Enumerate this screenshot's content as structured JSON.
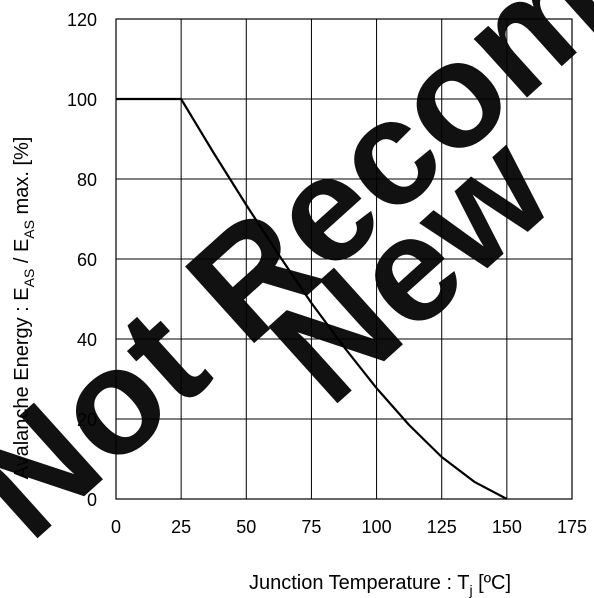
{
  "chart_data": {
    "type": "line",
    "title": "",
    "xlabel": {
      "main": "Junction Temperature : T",
      "sub": "j",
      "unit": " [ºC]"
    },
    "ylabel": {
      "part1": "Avalanche Energy : E",
      "sub1": "AS",
      "part2": " / E",
      "sub2": "AS",
      "part3": " max. [%]"
    },
    "xlim": [
      0,
      175
    ],
    "ylim": [
      0,
      120
    ],
    "x_ticks": [
      0,
      25,
      50,
      75,
      100,
      125,
      150,
      175
    ],
    "y_ticks": [
      0,
      20,
      40,
      60,
      80,
      100,
      120
    ],
    "grid": true,
    "series": [
      {
        "x": [
          0,
          25,
          37.5,
          50,
          62.5,
          75,
          87.5,
          100,
          112.5,
          125,
          137.5,
          150
        ],
        "y": [
          100,
          100,
          86.5,
          73.5,
          61,
          49,
          38,
          27.7,
          18.5,
          10.5,
          4.3,
          0
        ]
      }
    ]
  },
  "watermark": {
    "line1": "Not Recommended",
    "line2": "New"
  }
}
